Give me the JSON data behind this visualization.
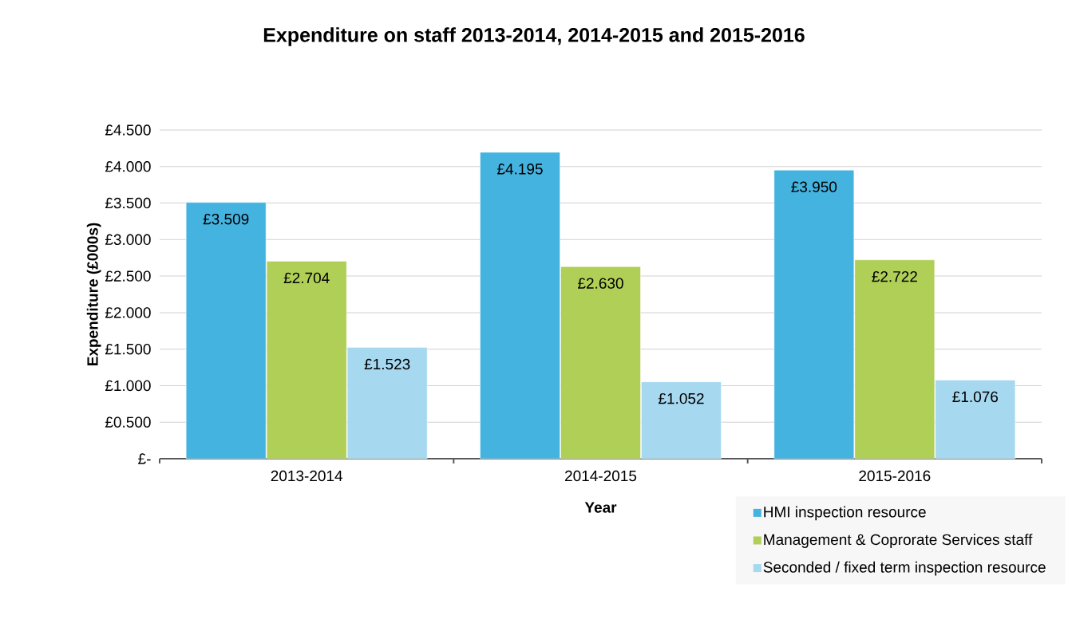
{
  "chart_data": {
    "type": "bar",
    "title": "Expenditure on staff 2013-2014, 2014-2015 and 2015-2016",
    "xlabel": "Year",
    "ylabel": "Expenditure  (£000s)",
    "categories": [
      "2013-2014",
      "2014-2015",
      "2015-2016"
    ],
    "series": [
      {
        "name": "HMI inspection resource",
        "color": "#45b3e0",
        "values": [
          3.509,
          4.195,
          3.95
        ],
        "value_labels": [
          "£3.509",
          "£4.195",
          "£3.950"
        ]
      },
      {
        "name": "Management & Coprorate Services staff",
        "color": "#b0cf57",
        "values": [
          2.704,
          2.63,
          2.722
        ],
        "value_labels": [
          "£2.704",
          "£2.630",
          "£2.722"
        ]
      },
      {
        "name": "Seconded / fixed term inspection resource",
        "color": "#a6d8f0",
        "values": [
          1.523,
          1.052,
          1.076
        ],
        "value_labels": [
          "£1.523",
          "£1.052",
          "£1.076"
        ]
      }
    ],
    "ylim": [
      0,
      4.5
    ],
    "yticks": [
      {
        "value": 0,
        "label": "£-"
      },
      {
        "value": 0.5,
        "label": "£0.500"
      },
      {
        "value": 1,
        "label": "£1.000"
      },
      {
        "value": 1.5,
        "label": "£1.500"
      },
      {
        "value": 2,
        "label": "£2.000"
      },
      {
        "value": 2.5,
        "label": "£2.500"
      },
      {
        "value": 3,
        "label": "£3.000"
      },
      {
        "value": 3.5,
        "label": "£3.500"
      },
      {
        "value": 4,
        "label": "£4.000"
      },
      {
        "value": 4.5,
        "label": "£4.500"
      }
    ],
    "grid": "y",
    "legend": "bottom right"
  }
}
